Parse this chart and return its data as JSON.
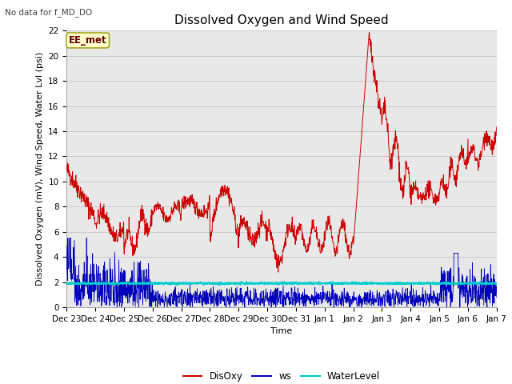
{
  "title": "Dissolved Oxygen and Wind Speed",
  "ylabel": "Dissolved Oxygen (mV), Wind Speed, Water Lvl (psi)",
  "xlabel": "Time",
  "top_left_text": "No data for f_MD_DO",
  "annotation_box": "EE_met",
  "ylim": [
    0,
    22
  ],
  "yticks": [
    0,
    2,
    4,
    6,
    8,
    10,
    12,
    14,
    16,
    18,
    20,
    22
  ],
  "xtick_labels": [
    "Dec 23",
    "Dec 24",
    "Dec 25",
    "Dec 26",
    "Dec 27",
    "Dec 28",
    "Dec 29",
    "Dec 30",
    "Dec 31",
    "Jan 1",
    "Jan 2",
    "Jan 3",
    "Jan 4",
    "Jan 5",
    "Jan 6",
    "Jan 7"
  ],
  "colors": {
    "DisOxy": "#cc0000",
    "ws": "#0000bb",
    "WaterLevel": "#00cccc",
    "plot_bg": "#e8e8e8",
    "annotation_bg": "#ffffcc",
    "annotation_border": "#999900"
  },
  "title_fontsize": 11,
  "label_fontsize": 8,
  "tick_fontsize": 7.5
}
